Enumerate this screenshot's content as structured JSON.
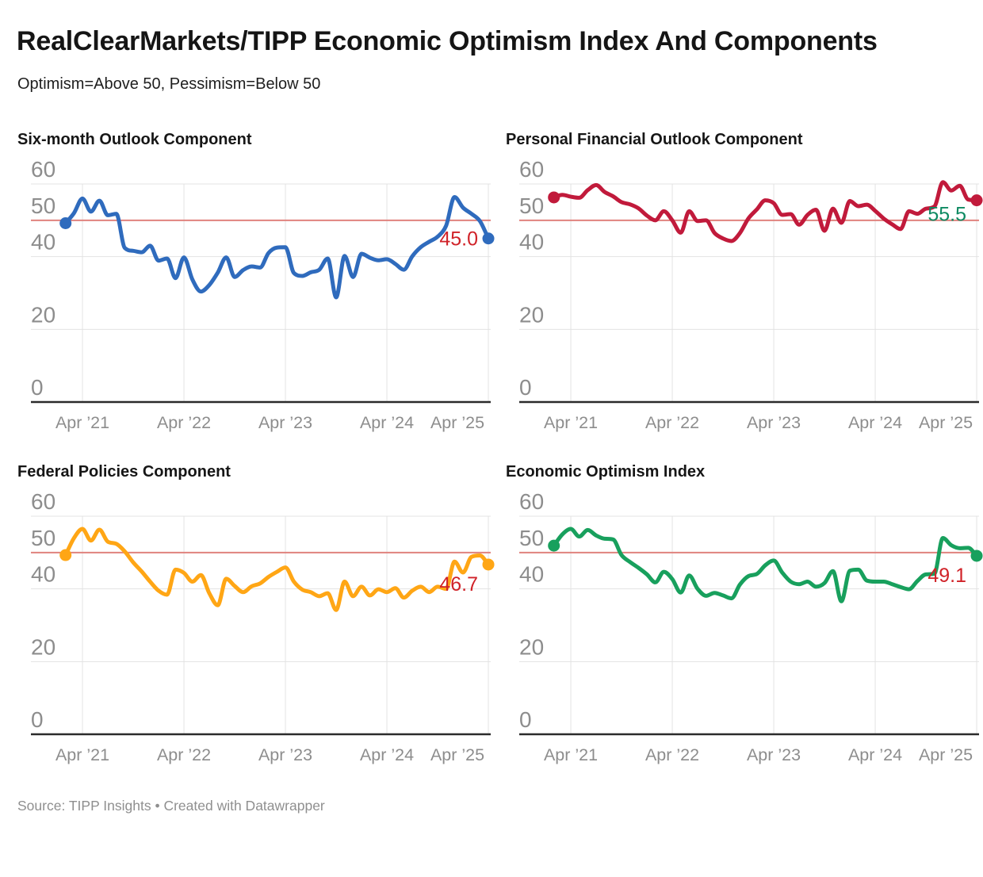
{
  "header": {
    "title": "RealClearMarkets/TIPP Economic Optimism Index And Components",
    "subtitle": "Optimism=Above 50, Pessimism=Below 50"
  },
  "footer": {
    "text": "Source: TIPP Insights • Created with Datawrapper"
  },
  "axis": {
    "y_ticks": [
      60,
      50,
      40,
      20,
      0
    ],
    "x_tick_labels": [
      "Apr ’21",
      "Apr ’22",
      "Apr ’23",
      "Apr ’24",
      "Apr ’25"
    ],
    "reference_line_value": 50,
    "ylim": [
      0,
      60
    ]
  },
  "colors": {
    "reference_line": "#e0827e",
    "gridline": "#e3e3e3",
    "axis_line": "#2b2b2b",
    "tick_label": "#8d8d8d",
    "label_red": "#d02228",
    "label_green": "#0e8a62"
  },
  "chart_data": [
    {
      "type": "line",
      "title": "Six-month Outlook Component",
      "series_color": "#2f6bbd",
      "x_start": "Feb 2021",
      "x_freq": "monthly",
      "last_value_label": "45.0",
      "last_label_color": "#d02228",
      "label_dy": 9,
      "values": [
        49.2,
        52.0,
        56.0,
        52.4,
        55.4,
        51.4,
        51.8,
        42.4,
        41.6,
        41.2,
        43.0,
        38.9,
        39.5,
        34.1,
        39.8,
        33.7,
        30.4,
        32.2,
        35.6,
        39.8,
        34.4,
        36.3,
        37.3,
        37.0,
        41.0,
        42.5,
        42.6,
        35.5,
        34.7,
        35.7,
        36.4,
        39.5,
        28.8,
        40.2,
        34.4,
        40.8,
        39.7,
        39.0,
        39.3,
        38.0,
        36.4,
        40.1,
        42.6,
        44.1,
        45.5,
        48.5,
        56.4,
        53.5,
        51.8,
        49.8,
        45.0
      ]
    },
    {
      "type": "line",
      "title": "Personal Financial Outlook Component",
      "series_color": "#c11a3b",
      "x_start": "Feb 2021",
      "x_freq": "monthly",
      "last_value_label": "55.5",
      "last_label_color": "#0e8a62",
      "label_dy": 26,
      "values": [
        56.3,
        57.0,
        56.5,
        56.2,
        58.3,
        59.7,
        57.8,
        56.6,
        55.0,
        54.4,
        53.3,
        51.3,
        50.0,
        52.5,
        50.0,
        46.6,
        52.5,
        49.8,
        50.0,
        46.5,
        45.0,
        44.3,
        46.5,
        50.5,
        53.0,
        55.5,
        54.7,
        51.5,
        51.7,
        48.8,
        51.5,
        52.9,
        47.1,
        53.2,
        49.3,
        55.3,
        53.9,
        54.3,
        52.6,
        50.5,
        48.9,
        47.6,
        52.5,
        51.8,
        53.2,
        53.8,
        60.5,
        58.2,
        59.5,
        55.7,
        55.5
      ]
    },
    {
      "type": "line",
      "title": "Federal Policies Component",
      "series_color": "#ffa615",
      "x_start": "Feb 2021",
      "x_freq": "monthly",
      "last_value_label": "46.7",
      "last_label_color": "#d02228",
      "label_dy": 33,
      "values": [
        49.3,
        54.0,
        56.5,
        53.3,
        56.3,
        53.0,
        52.4,
        50.3,
        47.3,
        44.8,
        42.0,
        39.5,
        38.4,
        45.3,
        44.4,
        42.0,
        43.8,
        38.8,
        35.5,
        42.8,
        40.8,
        39.1,
        40.7,
        41.5,
        43.3,
        44.7,
        45.9,
        42.0,
        39.8,
        39.1,
        38.0,
        38.8,
        34.2,
        42.0,
        38.0,
        40.6,
        38.2,
        39.9,
        39.1,
        40.2,
        37.6,
        39.5,
        40.6,
        39.1,
        40.6,
        40.0,
        47.5,
        44.5,
        48.8,
        49.2,
        46.7
      ]
    },
    {
      "type": "line",
      "title": "Economic Optimism Index",
      "series_color": "#18a05d",
      "x_start": "Feb 2021",
      "x_freq": "monthly",
      "last_value_label": "49.1",
      "last_label_color": "#d02228",
      "label_dy": 33,
      "values": [
        51.9,
        55.0,
        56.5,
        54.4,
        56.2,
        54.7,
        53.8,
        53.6,
        49.3,
        47.4,
        45.8,
        44.0,
        41.8,
        44.7,
        42.7,
        39.0,
        43.7,
        40.0,
        38.1,
        38.9,
        38.2,
        37.4,
        41.2,
        43.5,
        44.1,
        46.5,
        47.8,
        44.5,
        42.0,
        41.3,
        42.0,
        40.6,
        41.6,
        44.9,
        36.6,
        45.0,
        45.3,
        42.3,
        42.0,
        42.0,
        41.3,
        40.5,
        39.9,
        42.2,
        44.0,
        44.2,
        54.0,
        52.0,
        51.2,
        51.3,
        49.1
      ]
    }
  ]
}
